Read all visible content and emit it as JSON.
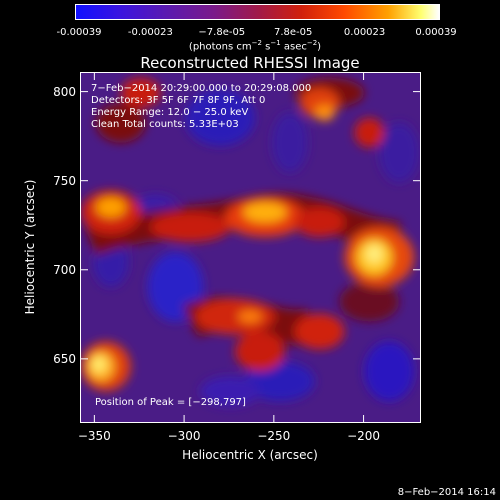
{
  "colorbar": {
    "ticks": [
      "-0.00039",
      "-0.00023",
      "−7.8e-05",
      "7.8e-05",
      "0.00023",
      "0.00039"
    ],
    "unit_prefix": "(photons cm",
    "unit_exp1": "−2",
    "unit_mid": " s",
    "unit_exp2": "−1",
    "unit_mid2": " asec",
    "unit_exp3": "−2",
    "unit_suffix": ")"
  },
  "title": "Reconstructed RHESSI Image",
  "annotations": {
    "time_range": "7−Feb−2014 20:29:00.000 to 20:29:08.000",
    "detectors": "Detectors: 3F 5F 6F 7F 8F 9F, Att 0",
    "energy": "Energy Range: 12.0 − 25.0 keV",
    "clean": "Clean    Total counts: 5.33E+03",
    "peak": "Position of Peak = [−298,797]"
  },
  "axes": {
    "xlabel": "Heliocentric X (arcsec)",
    "ylabel": "Heliocentric Y (arcsec)",
    "xticks": [
      "−350",
      "−300",
      "−250",
      "−200"
    ],
    "yticks": [
      "650",
      "700",
      "750",
      "800"
    ]
  },
  "footer": "8−Feb−2014 16:14",
  "chart_data": {
    "type": "heatmap",
    "title": "Reconstructed RHESSI Image",
    "xlabel": "Heliocentric X (arcsec)",
    "ylabel": "Heliocentric Y (arcsec)",
    "xlim": [
      -358,
      -168
    ],
    "ylim": [
      614,
      811
    ],
    "xticks": [
      -350,
      -300,
      -250,
      -200
    ],
    "yticks": [
      650,
      700,
      750,
      800
    ],
    "colorbar_ticks": [
      -0.00039,
      -0.00023,
      -7.8e-05,
      7.8e-05,
      0.00023,
      0.00039
    ],
    "peak": [
      -298,
      797
    ]
  }
}
